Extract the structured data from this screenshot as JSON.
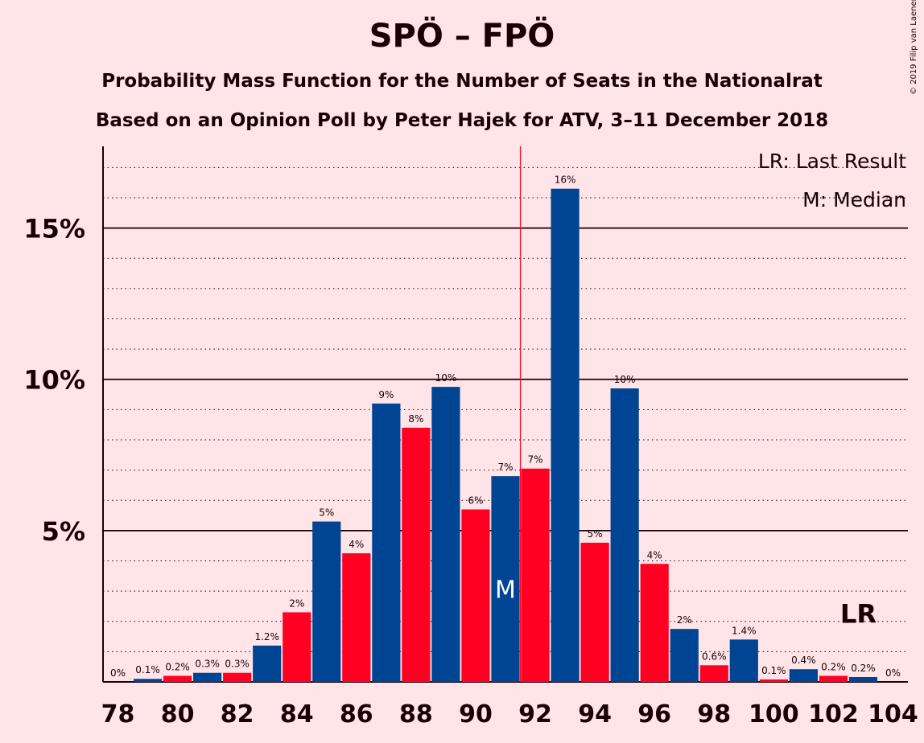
{
  "chart_data": {
    "type": "bar",
    "title": "SPÖ – FPÖ",
    "subtitle": "Probability Mass Function for the Number of Seats in the Nationalrat",
    "subtitle2": "Based on an Opinion Poll by Peter Hajek for ATV, 3–11 December 2018",
    "copyright": "© 2019 Filip van Laenen",
    "legend": {
      "lr": "LR: Last Result",
      "m": "M: Median",
      "placement": "top-right"
    },
    "x": [
      78,
      79,
      80,
      81,
      82,
      83,
      84,
      85,
      86,
      87,
      88,
      89,
      90,
      91,
      92,
      93,
      94,
      95,
      96,
      97,
      98,
      99,
      100,
      101,
      102,
      103,
      104
    ],
    "values": [
      0,
      0.1,
      0.2,
      0.3,
      0.3,
      1.2,
      2.3,
      5.3,
      4.25,
      9.2,
      8.4,
      9.75,
      5.7,
      6.8,
      7.05,
      16.3,
      4.6,
      9.7,
      3.9,
      1.75,
      0.55,
      1.4,
      0.08,
      0.42,
      0.2,
      0.16,
      0
    ],
    "labels": [
      "0%",
      "0.1%",
      "0.2%",
      "0.3%",
      "0.3%",
      "1.2%",
      "2%",
      "5%",
      "4%",
      "9%",
      "8%",
      "10%",
      "6%",
      "7%",
      "7%",
      "16%",
      "5%",
      "10%",
      "4%",
      "2%",
      "0.6%",
      "1.4%",
      "0.1%",
      "0.4%",
      "0.2%",
      "0.2%",
      "0%"
    ],
    "x_tick_labels": [
      "78",
      "80",
      "82",
      "84",
      "86",
      "88",
      "90",
      "92",
      "94",
      "96",
      "98",
      "100",
      "102",
      "104"
    ],
    "y_tick_labels": [
      "5%",
      "10%",
      "15%"
    ],
    "y_ticks": [
      5,
      10,
      15
    ],
    "ylim": [
      0,
      17.7
    ],
    "xlim": [
      77.5,
      104.5
    ],
    "median_seat": 91,
    "median_marker": "M",
    "last_result_seat": 103,
    "last_result_marker": "LR",
    "majority_line_x": 91.5,
    "colors": {
      "even": "#FF0023",
      "odd": "#004494",
      "background": "#FFE5E8",
      "majority_line": "#FF0023"
    }
  }
}
